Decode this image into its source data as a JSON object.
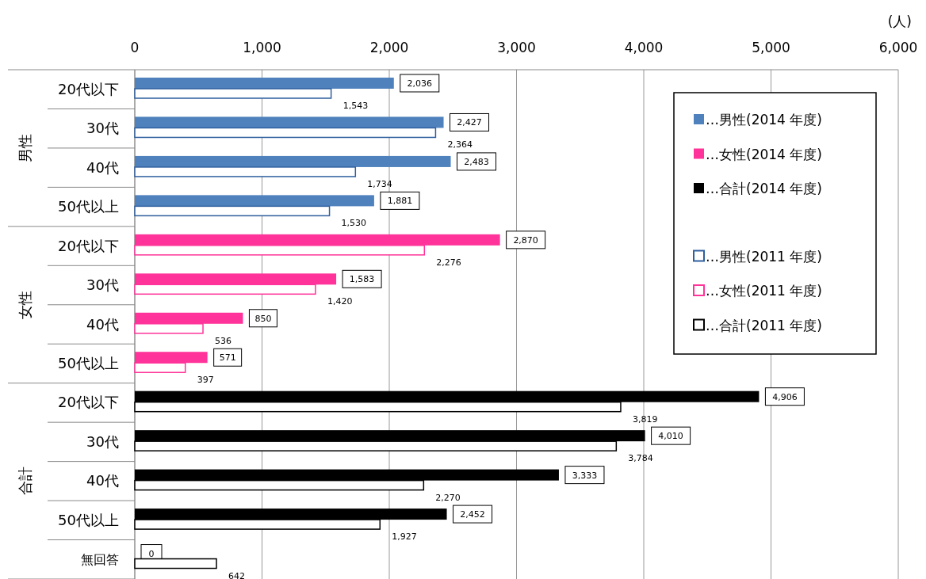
{
  "chart_data": {
    "type": "bar",
    "orientation": "horizontal",
    "xlabel": "(人)",
    "categories": [
      "20代以下",
      "30代",
      "40代",
      "50代以上",
      "20代以下",
      "30代",
      "40代",
      "50代以上",
      "20代以下",
      "30代",
      "40代",
      "50代以上",
      "無回答"
    ],
    "annotations": [
      "男性",
      "女性",
      "合計"
    ],
    "xlim": [
      0,
      6000
    ],
    "xticks": [
      0,
      {
        "value": 1000,
        "label": "1,000"
      },
      {
        "value": 2000,
        "label": "2,000"
      },
      {
        "value": 3000,
        "label": "3,000"
      },
      {
        "value": 4000,
        "label": "4,000"
      },
      {
        "value": 5000,
        "label": "5,000"
      },
      {
        "value": 6000,
        "label": "6,000"
      }
    ],
    "grid": "x",
    "legend": "top right",
    "series": [
      {
        "name": "…男性(2014 年度)",
        "color": "#4f81bd",
        "values": [
          2036,
          2427,
          2483,
          1881,
          null,
          null,
          null,
          null,
          null,
          null,
          null,
          null,
          null
        ],
        "value_labels": [
          "2,036",
          "2,427",
          "2,483",
          "1,881",
          null,
          null,
          null,
          null,
          null,
          null,
          null,
          null,
          null
        ]
      },
      {
        "name": "…女性(2014 年度)",
        "color": "#ff3399",
        "values": [
          null,
          null,
          null,
          null,
          2870,
          1583,
          850,
          571,
          null,
          null,
          null,
          null,
          null
        ],
        "value_labels": [
          null,
          null,
          null,
          null,
          "2,870",
          "1,583",
          "850",
          "571",
          null,
          null,
          null,
          null,
          null
        ]
      },
      {
        "name": "…合計(2014 年度)",
        "color": "#000000",
        "values": [
          null,
          null,
          null,
          null,
          null,
          null,
          null,
          null,
          4906,
          4010,
          3333,
          2452,
          0
        ],
        "value_labels": [
          null,
          null,
          null,
          null,
          null,
          null,
          null,
          null,
          "4,906",
          "4,010",
          "3,333",
          "2,452",
          "0"
        ]
      },
      {
        "name": "…男性(2011 年度)",
        "color": "#2e5f9e",
        "values": [
          1543,
          2364,
          1734,
          1530,
          null,
          null,
          null,
          null,
          null,
          null,
          null,
          null,
          null
        ],
        "value_labels": [
          "1,543",
          "2,364",
          "1,734",
          "1,530",
          null,
          null,
          null,
          null,
          null,
          null,
          null,
          null,
          null
        ]
      },
      {
        "name": "…女性(2011 年度)",
        "color": "#ff3399",
        "values": [
          null,
          null,
          null,
          null,
          2276,
          1420,
          536,
          397,
          null,
          null,
          null,
          null,
          null
        ],
        "value_labels": [
          null,
          null,
          null,
          null,
          "2,276",
          "1,420",
          "536",
          "397",
          null,
          null,
          null,
          null,
          null
        ]
      },
      {
        "name": "…合計(2011 年度)",
        "color": "#000000",
        "values": [
          null,
          null,
          null,
          null,
          null,
          null,
          null,
          null,
          3819,
          3784,
          2270,
          1927,
          642
        ],
        "value_labels": [
          null,
          null,
          null,
          null,
          null,
          null,
          null,
          null,
          "3,819",
          "3,784",
          "2,270",
          "1,927",
          "642"
        ]
      }
    ]
  }
}
